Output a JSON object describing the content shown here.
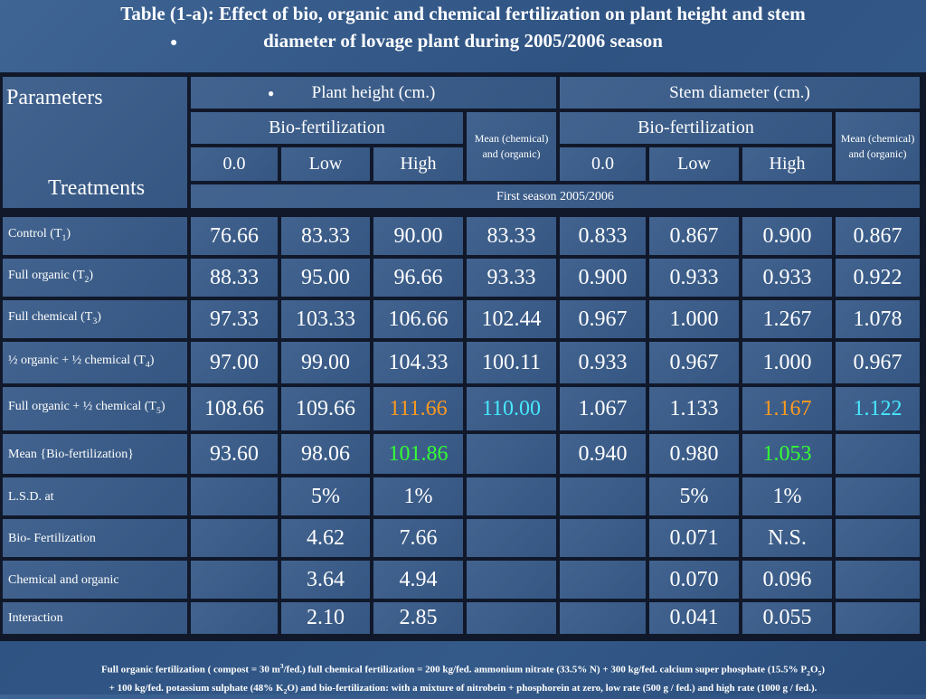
{
  "title": {
    "line1": "Table (1-a): Effect of bio, organic and chemical fertilization on  plant height and stem",
    "line2": "diameter of lovage plant during 2005/2006 season"
  },
  "header": {
    "parameters": "Parameters",
    "treatments": "Treatments",
    "plant_height": "Plant height (cm.)",
    "stem_diameter": "Stem diameter (cm.)",
    "bio_fertilization": "Bio-fertilization",
    "mean_chem_org": "Mean (chemical) and (organic)",
    "levels": [
      "0.0",
      "Low",
      "High"
    ],
    "season": "First season 2005/2006"
  },
  "rows": [
    {
      "label": "Control  (T",
      "sub": "1",
      "tail": ")",
      "values": [
        "76.66",
        "83.33",
        "90.00",
        "83.33",
        "0.833",
        "0.867",
        "0.900",
        "0.867"
      ]
    },
    {
      "label": "Full organic (T",
      "sub": "2",
      "tail": ")",
      "values": [
        "88.33",
        "95.00",
        "96.66",
        "93.33",
        "0.900",
        "0.933",
        "0.933",
        "0.922"
      ]
    },
    {
      "label": "Full chemical (T",
      "sub": "3",
      "tail": ")",
      "values": [
        "97.33",
        "103.33",
        "106.66",
        "102.44",
        "0.967",
        "1.000",
        "1.267",
        "1.078"
      ]
    },
    {
      "label": "½ organic + ½ chemical (T",
      "sub": "4",
      "tail": ")",
      "values": [
        "97.00",
        "99.00",
        "104.33",
        "100.11",
        "0.933",
        "0.967",
        "1.000",
        "0.967"
      ]
    },
    {
      "label": "Full organic + ½ chemical (T",
      "sub": "5",
      "tail": ")",
      "values": [
        "108.66",
        "109.66",
        "111.66",
        "110.00",
        "1.067",
        "1.133",
        "1.167",
        "1.122"
      ]
    },
    {
      "label": "Mean {Bio-fertilization}",
      "sub": "",
      "tail": "",
      "values": [
        "93.60",
        "98.06",
        "101.86",
        "",
        "0.940",
        "0.980",
        "1.053",
        ""
      ]
    },
    {
      "label": "L.S.D.  at",
      "sub": "",
      "tail": "",
      "values": [
        "",
        "5%",
        "1%",
        "",
        "",
        "5%",
        "1%",
        ""
      ]
    },
    {
      "label": "Bio- Fertilization",
      "sub": "",
      "tail": "",
      "values": [
        "",
        "4.62",
        "7.66",
        "",
        "",
        "0.071",
        "N.S.",
        ""
      ]
    },
    {
      "label": "Chemical  and organic",
      "sub": "",
      "tail": "",
      "values": [
        "",
        "3.64",
        "4.94",
        "",
        "",
        "0.070",
        "0.096",
        ""
      ]
    },
    {
      "label": "Interaction",
      "sub": "",
      "tail": "",
      "values": [
        "",
        "2.10",
        "2.85",
        "",
        "",
        "0.041",
        "0.055",
        ""
      ]
    }
  ],
  "footer": {
    "line1a": "Full organic fertilization ( compost = 30 m",
    "line1b": "3",
    "line1c": "/fed.) full chemical fertilization = 200 kg/fed. ammonium nitrate (33.5% N) + 300 kg/fed. calcium super phosphate (15.5% P",
    "line1d": "2",
    "line1e": "O",
    "line1f": "5",
    "line1g": ")",
    "line2a": "+ 100 kg/fed. potassium  sulphate (48% K",
    "line2b": "2",
    "line2c": "O)   and bio-fertilization: with a mixture of nitrobein + phosphorein at zero, low rate (500 g / fed.) and high rate  (1000 g / fed.)."
  },
  "colors": {
    "background": "#345a8a",
    "cell": "#3c6291",
    "grid": "#10182a",
    "orange": "#ff9a1e",
    "cyan": "#47e8ff",
    "green": "#33ff33"
  }
}
